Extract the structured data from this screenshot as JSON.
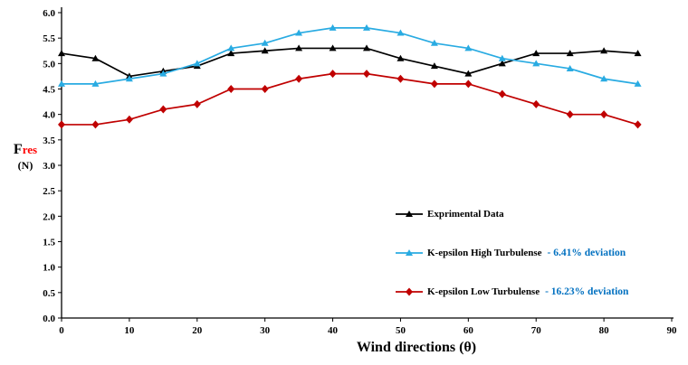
{
  "chart_data": {
    "type": "line",
    "title": "",
    "xlabel": "Wind directions (θ)",
    "ylabel_main": "F",
    "ylabel_sub": "res",
    "ylabel_unit": "(N)",
    "xlim": [
      0,
      90
    ],
    "ylim": [
      0,
      6
    ],
    "x_ticks": [
      0,
      10,
      20,
      30,
      40,
      50,
      60,
      70,
      80,
      90
    ],
    "y_tick_min": 0,
    "y_tick_max": 6,
    "y_tick_step": 0.5,
    "grid": false,
    "legend_position": "inside-lower-right",
    "deviation_color": "#0070C0",
    "x": [
      0,
      5,
      10,
      15,
      20,
      25,
      30,
      35,
      40,
      45,
      50,
      55,
      60,
      65,
      70,
      75,
      80,
      85
    ],
    "series": [
      {
        "name": "Exprimental Data",
        "color": "#000000",
        "marker": "triangle",
        "deviation": "",
        "values": [
          5.2,
          5.1,
          4.75,
          4.85,
          4.95,
          5.2,
          5.25,
          5.3,
          5.3,
          5.3,
          5.1,
          4.95,
          4.8,
          5.0,
          5.2,
          5.2,
          5.25,
          5.2
        ]
      },
      {
        "name": "K-epsilon High Turbulense",
        "color": "#29ABE2",
        "marker": "triangle",
        "deviation": "- 6.41% deviation",
        "values": [
          4.6,
          4.6,
          4.7,
          4.8,
          5.0,
          5.3,
          5.4,
          5.6,
          5.7,
          5.7,
          5.6,
          5.4,
          5.3,
          5.1,
          5.0,
          4.9,
          4.7,
          4.6
        ]
      },
      {
        "name": "K-epsilon Low Turbulense",
        "color": "#C00000",
        "marker": "diamond",
        "deviation": "- 16.23% deviation",
        "values": [
          3.8,
          3.8,
          3.9,
          4.1,
          4.2,
          4.5,
          4.5,
          4.7,
          4.8,
          4.8,
          4.7,
          4.6,
          4.6,
          4.4,
          4.2,
          4.0,
          4.0,
          3.8
        ]
      }
    ]
  }
}
